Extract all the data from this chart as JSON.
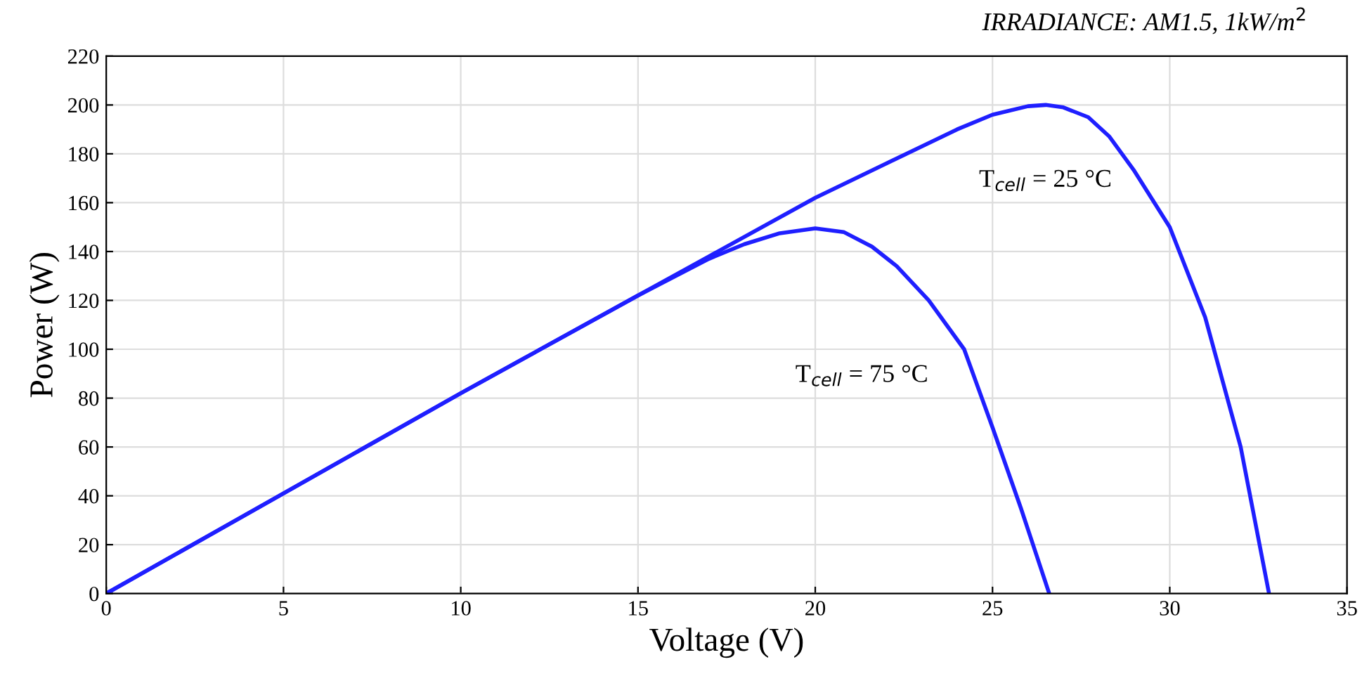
{
  "chart_data": {
    "type": "line",
    "title": "IRRADIANCE: AM1.5, 1kW/m$^{2}$",
    "xlabel": "Voltage (V)",
    "ylabel": "Power (W)",
    "series": [
      {
        "color": "#1f1fff",
        "x": [
          0,
          5,
          10,
          15,
          17,
          20,
          22,
          23,
          24,
          25,
          26,
          26.5,
          27,
          27.7,
          28.3,
          29,
          30,
          31,
          32,
          32.8
        ],
        "values": [
          0,
          41,
          82,
          122,
          138,
          162,
          176,
          183,
          190,
          196,
          199.5,
          200,
          199,
          195,
          187,
          173,
          150,
          113,
          60,
          0
        ]
      },
      {
        "color": "#1f1fff",
        "x": [
          0,
          5,
          10,
          15,
          17,
          18,
          19,
          20,
          20.8,
          21.6,
          22.3,
          23.2,
          24.2,
          25,
          25.8,
          26.6
        ],
        "values": [
          0,
          41,
          82,
          122,
          137,
          143,
          147.5,
          149.5,
          148,
          142,
          134,
          120,
          100,
          68,
          35,
          0
        ]
      }
    ],
    "annotations": [
      "T$_{cell}$ = 25 °C",
      "T$_{cell}$ = 75 °C"
    ],
    "xlim": [
      0,
      35
    ],
    "xticks": [
      0,
      5,
      10,
      15,
      20,
      25,
      30,
      35
    ],
    "ylim": [
      0,
      220
    ],
    "yticks": [
      0,
      20,
      40,
      60,
      80,
      100,
      120,
      140,
      160,
      180,
      200,
      220
    ],
    "grid": true,
    "line_style": "solid",
    "marker": "none"
  }
}
